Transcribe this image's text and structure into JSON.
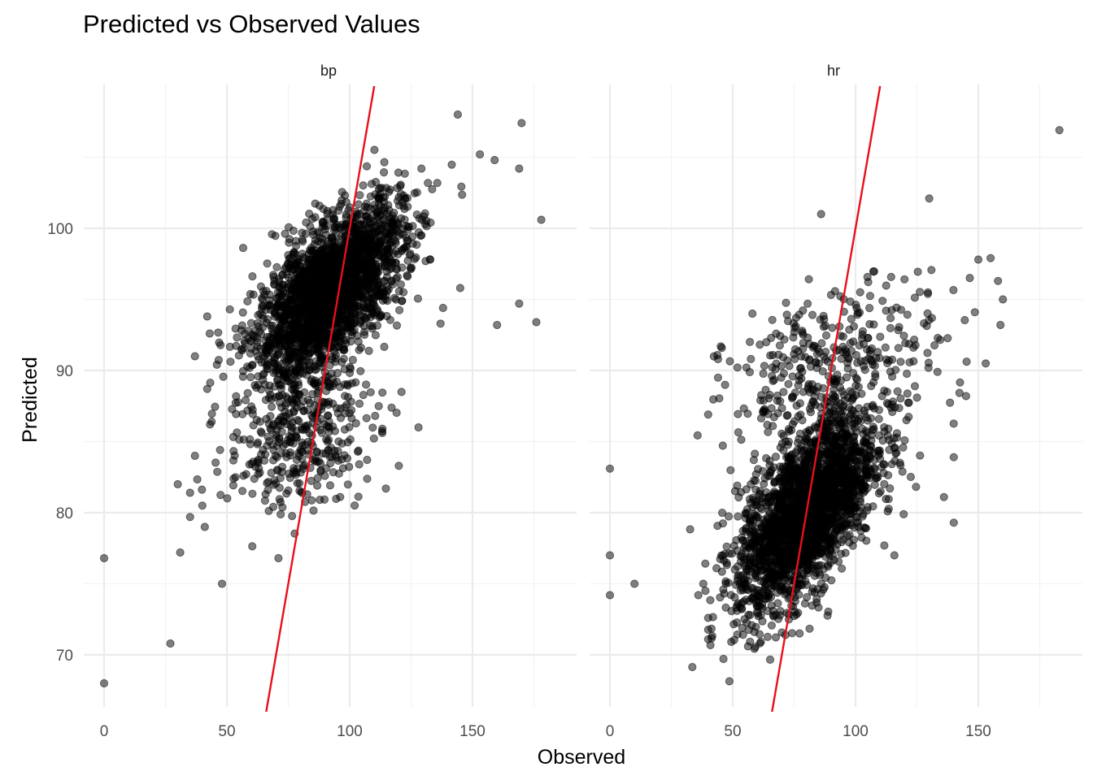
{
  "chart_data": {
    "type": "scatter",
    "title": "Predicted vs Observed Values",
    "xlabel": "Observed",
    "ylabel": "Predicted",
    "colors": {
      "points": "#000000",
      "reference_line": "#e8101a",
      "grid": "#ebebeb"
    },
    "facets": [
      {
        "name": "bp",
        "xlim": [
          -5,
          193
        ],
        "ylim": [
          66,
          110
        ],
        "xticks": [
          "0",
          "50",
          "100",
          "150"
        ],
        "yticks": [
          "70",
          "80",
          "90",
          "100"
        ],
        "reference_line": {
          "slope": 1,
          "intercept": 0
        },
        "cluster_main": {
          "count": 2400,
          "cx": 92,
          "cy": 95.5,
          "sx": 15,
          "sy": 3.0,
          "rho": 0.62
        },
        "cluster_secondary": {
          "count": 380,
          "cx": 80,
          "cy": 85.5,
          "sx": 15,
          "sy": 2.6,
          "rho": 0.3
        },
        "outliers": [
          {
            "x": 0,
            "y": 76.8
          },
          {
            "x": 0,
            "y": 68.0
          },
          {
            "x": 27,
            "y": 70.8
          },
          {
            "x": 48,
            "y": 75.0
          },
          {
            "x": 30,
            "y": 82.0
          },
          {
            "x": 31,
            "y": 77.2
          },
          {
            "x": 35,
            "y": 79.7
          },
          {
            "x": 35,
            "y": 81.4
          },
          {
            "x": 37,
            "y": 84.0
          },
          {
            "x": 40,
            "y": 80.5
          },
          {
            "x": 41,
            "y": 79.0
          },
          {
            "x": 37,
            "y": 91.0
          },
          {
            "x": 42,
            "y": 88.7
          },
          {
            "x": 43,
            "y": 92.6
          },
          {
            "x": 42,
            "y": 93.8
          },
          {
            "x": 71,
            "y": 76.8
          },
          {
            "x": 144,
            "y": 108.0
          },
          {
            "x": 170,
            "y": 107.4
          },
          {
            "x": 169,
            "y": 104.2
          },
          {
            "x": 178,
            "y": 100.6
          },
          {
            "x": 169,
            "y": 94.7
          },
          {
            "x": 176,
            "y": 93.4
          },
          {
            "x": 160,
            "y": 93.2
          },
          {
            "x": 153,
            "y": 105.2
          },
          {
            "x": 159,
            "y": 104.8
          },
          {
            "x": 145,
            "y": 95.8
          },
          {
            "x": 138,
            "y": 94.4
          },
          {
            "x": 137,
            "y": 93.3
          },
          {
            "x": 128,
            "y": 86.0
          },
          {
            "x": 120,
            "y": 83.3
          }
        ]
      },
      {
        "name": "hr",
        "xlim": [
          -5,
          193
        ],
        "ylim": [
          66,
          110
        ],
        "xticks": [
          "0",
          "50",
          "100",
          "150"
        ],
        "yticks": [
          "70",
          "80",
          "90",
          "100"
        ],
        "reference_line": {
          "slope": 1,
          "intercept": 0
        },
        "cluster_main": {
          "count": 2400,
          "cx": 80,
          "cy": 80.0,
          "sx": 14,
          "sy": 3.4,
          "rho": 0.6
        },
        "cluster_secondary": {
          "count": 380,
          "cx": 92,
          "cy": 90.0,
          "sx": 22,
          "sy": 3.0,
          "rho": 0.35
        },
        "outliers": [
          {
            "x": 0,
            "y": 83.1
          },
          {
            "x": 0,
            "y": 77.0
          },
          {
            "x": 0,
            "y": 74.2
          },
          {
            "x": 10,
            "y": 75.0
          },
          {
            "x": 36,
            "y": 74.2
          },
          {
            "x": 38,
            "y": 75.0
          },
          {
            "x": 40,
            "y": 71.1
          },
          {
            "x": 40,
            "y": 72.6
          },
          {
            "x": 40,
            "y": 86.9
          },
          {
            "x": 44,
            "y": 90.8
          },
          {
            "x": 44,
            "y": 89.5
          },
          {
            "x": 58,
            "y": 94.0
          },
          {
            "x": 86,
            "y": 101.0
          },
          {
            "x": 130,
            "y": 102.1
          },
          {
            "x": 183,
            "y": 106.9
          },
          {
            "x": 150,
            "y": 97.8
          },
          {
            "x": 155,
            "y": 97.9
          },
          {
            "x": 158,
            "y": 96.3
          },
          {
            "x": 160,
            "y": 95.0
          },
          {
            "x": 159,
            "y": 93.2
          },
          {
            "x": 153,
            "y": 90.5
          },
          {
            "x": 145,
            "y": 88.2
          },
          {
            "x": 140,
            "y": 83.9
          },
          {
            "x": 140,
            "y": 79.3
          },
          {
            "x": 136,
            "y": 81.1
          }
        ]
      }
    ]
  }
}
